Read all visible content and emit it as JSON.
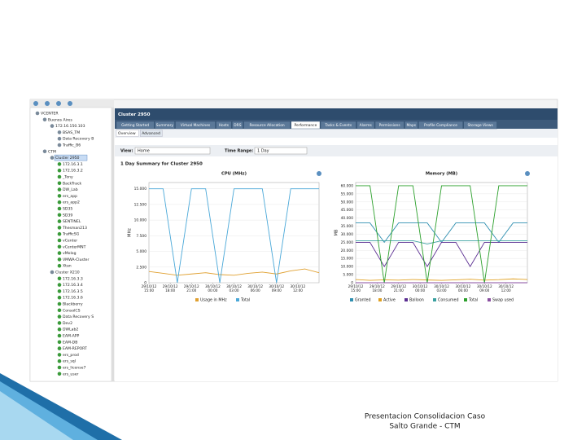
{
  "toolbar": {
    "view_label": "View:",
    "view_value": "Home",
    "range_label": "Time Range:",
    "range_value": "1 Day"
  },
  "tree": [
    "VCENTER",
    "Buenos Aires",
    "172.16.150.103",
    "BSAS_TM",
    "Data Recovery B",
    "Traffic_B6",
    "CTM",
    "Cluster 2950",
    "172.16.3.1",
    "172.16.3.2",
    "_Tony",
    "BackTrack",
    "DW_Lab",
    "ers_app",
    "ers_app2",
    "SD35",
    "SD39",
    "SENTINEL",
    "Thesman213",
    "TrafficSG",
    "vCenter",
    "vCenterMNT",
    "vMolog",
    "VMWA-Cluster",
    "Xtan",
    "Cluster X210",
    "172.16.3.3",
    "172.16.3.4",
    "172.16.3.5",
    "172.16.3.6",
    "Blackberry",
    "ConsolCS",
    "Data Recovery S",
    "Dev2",
    "DWLab2",
    "EAM-APP",
    "EAM-DB",
    "EAM-REPORT",
    "ers_prod",
    "ers_sql",
    "ers_license7",
    "ers_user"
  ],
  "panel_title": "Cluster 2950",
  "tabs": [
    "Getting Started",
    "Summary",
    "Virtual Machines",
    "Hosts",
    "DRS",
    "Resource Allocation",
    "Performance",
    "Tasks & Events",
    "Alarms",
    "Permissions",
    "Maps",
    "Profile Compliance",
    "Storage Views"
  ],
  "subtabs": [
    "Overview",
    "Advanced"
  ],
  "summary_title": "1 Day Summary for Cluster 2950",
  "footer": [
    "Presentacion Consolidacion Caso",
    "Salto Grande - CTM"
  ],
  "chart_data": [
    {
      "type": "line",
      "title": "CPU (MHz)",
      "y_label": "MHz",
      "x": [
        0,
        2,
        4,
        6,
        8,
        10,
        12,
        14,
        16,
        18,
        20,
        22,
        24
      ],
      "xlim": [
        0,
        24
      ],
      "xticks": [
        {
          "value": 0,
          "label": "15:00"
        },
        {
          "value": 3,
          "label": "18:00"
        },
        {
          "value": 6,
          "label": "21:00"
        },
        {
          "value": 9,
          "label": "00:00"
        },
        {
          "value": 12,
          "label": "03:00"
        },
        {
          "value": 15,
          "label": "06:00"
        },
        {
          "value": 18,
          "label": "09:00"
        },
        {
          "value": 21,
          "label": "12:00"
        }
      ],
      "xtick_dates": [
        "29/10/12",
        "29/10/12",
        "29/10/12",
        "30/10/12",
        "30/10/12",
        "30/10/12",
        "30/10/12",
        "30/10/12"
      ],
      "ylim": [
        0,
        16000
      ],
      "yticks": [
        0,
        {
          "value": 2500,
          "label": "2.500"
        },
        {
          "value": 5000,
          "label": "5.000"
        },
        {
          "value": 7500,
          "label": "7.500"
        },
        {
          "value": 10000,
          "label": "10.000"
        },
        {
          "value": 12500,
          "label": "12.500"
        },
        {
          "value": 15000,
          "label": "15.000"
        }
      ],
      "grid": true,
      "series": [
        {
          "name": "Usage in MHz",
          "color": "#e0a030",
          "values": [
            1800,
            1500,
            1200,
            1400,
            1600,
            1300,
            1200,
            1500,
            1700,
            1400,
            1900,
            2200,
            1600
          ]
        },
        {
          "name": "Total",
          "color": "#4aa8d8",
          "values": [
            15000,
            15000,
            0,
            15000,
            15000,
            0,
            15000,
            15000,
            15000,
            0,
            15000,
            15000,
            15000
          ]
        }
      ]
    },
    {
      "type": "line",
      "title": "Memory (MB)",
      "y_label": "MB",
      "x": [
        0,
        2,
        4,
        6,
        8,
        10,
        12,
        14,
        16,
        18,
        20,
        22,
        24
      ],
      "xlim": [
        0,
        24
      ],
      "xticks": [
        {
          "value": 0,
          "label": "15:00"
        },
        {
          "value": 3,
          "label": "18:00"
        },
        {
          "value": 6,
          "label": "21:00"
        },
        {
          "value": 9,
          "label": "00:00"
        },
        {
          "value": 12,
          "label": "03:00"
        },
        {
          "value": 15,
          "label": "06:00"
        },
        {
          "value": 18,
          "label": "09:00"
        },
        {
          "value": 21,
          "label": "12:00"
        }
      ],
      "xtick_dates": [
        "29/10/12",
        "29/10/12",
        "29/10/12",
        "30/10/12",
        "30/10/12",
        "30/10/12",
        "30/10/12",
        "30/10/12"
      ],
      "ylim": [
        0,
        62000
      ],
      "yticks": [
        0,
        {
          "value": 5000,
          "label": "5.000"
        },
        {
          "value": 10000,
          "label": "10.000"
        },
        {
          "value": 15000,
          "label": "15.000"
        },
        {
          "value": 20000,
          "label": "20.000"
        },
        {
          "value": 25000,
          "label": "25.000"
        },
        {
          "value": 30000,
          "label": "30.000"
        },
        {
          "value": 35000,
          "label": "35.000"
        },
        {
          "value": 40000,
          "label": "40.000"
        },
        {
          "value": 45000,
          "label": "45.000"
        },
        {
          "value": 50000,
          "label": "50.000"
        },
        {
          "value": 55000,
          "label": "55.000"
        },
        {
          "value": 60000,
          "label": "60.000"
        }
      ],
      "grid": true,
      "series": [
        {
          "name": "Granted",
          "color": "#2f8fb0",
          "values": [
            37000,
            37000,
            25000,
            37000,
            37000,
            37000,
            25000,
            37000,
            37000,
            37000,
            25000,
            37000,
            37000
          ]
        },
        {
          "name": "Active",
          "color": "#e0a020",
          "values": [
            2000,
            1500,
            1800,
            1600,
            2000,
            1700,
            1500,
            1800,
            2200,
            1600,
            1900,
            2400,
            2000
          ]
        },
        {
          "name": "Balloon",
          "color": "#5a2d91",
          "values": [
            25000,
            25000,
            10000,
            25000,
            25000,
            10000,
            25000,
            25000,
            10000,
            25000,
            25000,
            25000,
            25000
          ]
        },
        {
          "name": "Consumed",
          "color": "#3aa0a0",
          "values": [
            26000,
            26000,
            26000,
            26000,
            26000,
            24000,
            26000,
            26000,
            26000,
            26000,
            26000,
            26000,
            26000
          ]
        },
        {
          "name": "Total",
          "color": "#2ca02c",
          "values": [
            60000,
            60000,
            0,
            60000,
            60000,
            0,
            60000,
            60000,
            60000,
            0,
            60000,
            60000,
            60000
          ]
        },
        {
          "name": "Swap used",
          "color": "#8a4fa0",
          "values": [
            0,
            0,
            0,
            0,
            0,
            0,
            0,
            0,
            0,
            0,
            0,
            0,
            0
          ]
        }
      ]
    }
  ]
}
